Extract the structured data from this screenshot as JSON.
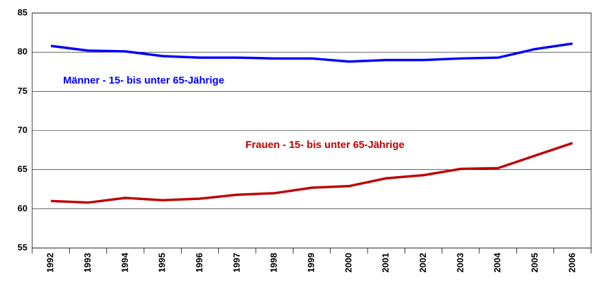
{
  "chart_data": {
    "type": "line",
    "categories": [
      "1992",
      "1993",
      "1994",
      "1995",
      "1996",
      "1997",
      "1998",
      "1999",
      "2000",
      "2001",
      "2002",
      "2003",
      "2004",
      "2005",
      "2006"
    ],
    "series": [
      {
        "name": "Männer - 15- bis unter 65-Jährige",
        "color": "#0000ff",
        "values": [
          80.8,
          80.2,
          80.1,
          79.5,
          79.3,
          79.3,
          79.2,
          79.2,
          78.8,
          79.0,
          79.0,
          79.2,
          79.3,
          80.4,
          81.1
        ]
      },
      {
        "name": "Frauen - 15- bis unter 65-Jährige",
        "color": "#c00000",
        "values": [
          61.0,
          60.8,
          61.4,
          61.1,
          61.3,
          61.8,
          62.0,
          62.7,
          62.9,
          63.9,
          64.3,
          65.1,
          65.2,
          66.8,
          68.4
        ]
      }
    ],
    "ylim": [
      55,
      85
    ],
    "yticks": [
      55,
      60,
      65,
      70,
      75,
      80,
      85
    ],
    "grid": true
  }
}
